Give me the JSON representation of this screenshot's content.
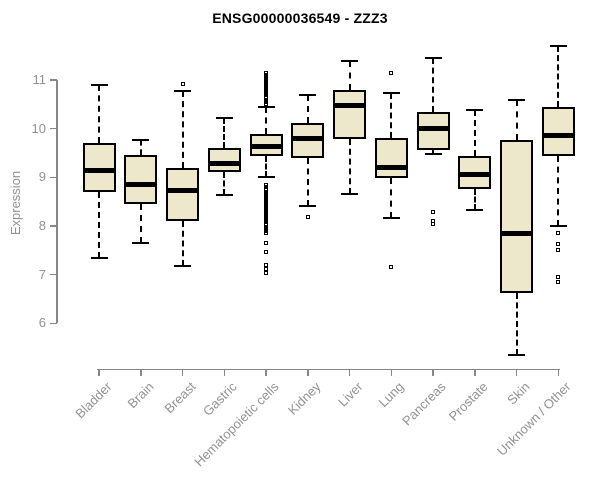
{
  "page": {
    "background": "#FFFFFF"
  },
  "chart_data": {
    "type": "boxplot",
    "title": "ENSG00000036549 - ZZZ3",
    "ylabel": "Expression",
    "xlabel": "",
    "yticks": [
      6,
      7,
      8,
      9,
      10,
      11
    ],
    "ylim": [
      5.05,
      11.85
    ],
    "grid": false,
    "legend": "none",
    "outlier_marker": "open-square-icon",
    "colors": {
      "box_fill": "#EDE7CB",
      "box_stroke": "#000000",
      "axis": "#878787",
      "tick_label": "#929292",
      "title": "#000000"
    },
    "categories": [
      "Bladder",
      "Brain",
      "Breast",
      "Gastric",
      "Hematopoietic cells",
      "Kidney",
      "Liver",
      "Lung",
      "Pancreas",
      "Prostate",
      "Skin",
      "Unknown / Other"
    ],
    "boxes": [
      {
        "category": "Bladder",
        "whisker_low": 7.35,
        "q1": 8.7,
        "median": 9.13,
        "q3": 9.7,
        "whisker_high": 10.9,
        "outliers": []
      },
      {
        "category": "Brain",
        "whisker_low": 7.65,
        "q1": 8.45,
        "median": 8.85,
        "q3": 9.45,
        "whisker_high": 9.77,
        "outliers": []
      },
      {
        "category": "Breast",
        "whisker_low": 7.18,
        "q1": 8.1,
        "median": 8.72,
        "q3": 9.2,
        "whisker_high": 10.78,
        "outliers": [
          10.92
        ]
      },
      {
        "category": "Gastric",
        "whisker_low": 8.64,
        "q1": 9.1,
        "median": 9.29,
        "q3": 9.6,
        "whisker_high": 10.21,
        "outliers": []
      },
      {
        "category": "Hematopoietic cells",
        "whisker_low": 9.0,
        "q1": 9.44,
        "median": 9.63,
        "q3": 9.88,
        "whisker_high": 10.45,
        "outliers": [
          10.5,
          10.54,
          10.58,
          10.62,
          10.66,
          10.7,
          10.74,
          10.78,
          10.82,
          10.86,
          10.9,
          10.94,
          10.98,
          11.02,
          11.06,
          11.1,
          11.14,
          8.85,
          8.81,
          8.77,
          8.73,
          8.69,
          8.65,
          8.61,
          8.57,
          8.53,
          8.49,
          8.45,
          8.41,
          8.37,
          8.33,
          8.29,
          8.25,
          8.21,
          8.17,
          8.13,
          8.09,
          8.05,
          8.01,
          7.97,
          7.93,
          7.89,
          7.85,
          7.65,
          7.46,
          7.2,
          7.12,
          7.04
        ]
      },
      {
        "category": "Kidney",
        "whisker_low": 8.42,
        "q1": 9.4,
        "median": 9.8,
        "q3": 10.12,
        "whisker_high": 10.7,
        "outliers": [
          8.18
        ]
      },
      {
        "category": "Liver",
        "whisker_low": 8.66,
        "q1": 9.78,
        "median": 10.47,
        "q3": 10.79,
        "whisker_high": 11.4,
        "outliers": []
      },
      {
        "category": "Lung",
        "whisker_low": 8.16,
        "q1": 8.98,
        "median": 9.21,
        "q3": 9.8,
        "whisker_high": 10.74,
        "outliers": [
          11.15,
          7.15
        ]
      },
      {
        "category": "Pancreas",
        "whisker_low": 9.47,
        "q1": 9.56,
        "median": 10.01,
        "q3": 10.34,
        "whisker_high": 11.45,
        "outliers": [
          8.28,
          8.1,
          8.04
        ]
      },
      {
        "category": "Prostate",
        "whisker_low": 8.32,
        "q1": 8.76,
        "median": 9.06,
        "q3": 9.44,
        "whisker_high": 10.38,
        "outliers": []
      },
      {
        "category": "Skin",
        "whisker_low": 5.35,
        "q1": 6.62,
        "median": 7.85,
        "q3": 9.76,
        "whisker_high": 10.58,
        "outliers": []
      },
      {
        "category": "Unknown / Other",
        "whisker_low": 8.0,
        "q1": 9.44,
        "median": 9.85,
        "q3": 10.45,
        "whisker_high": 11.7,
        "outliers": [
          7.85,
          7.62,
          7.5,
          6.95,
          6.85
        ]
      }
    ]
  }
}
